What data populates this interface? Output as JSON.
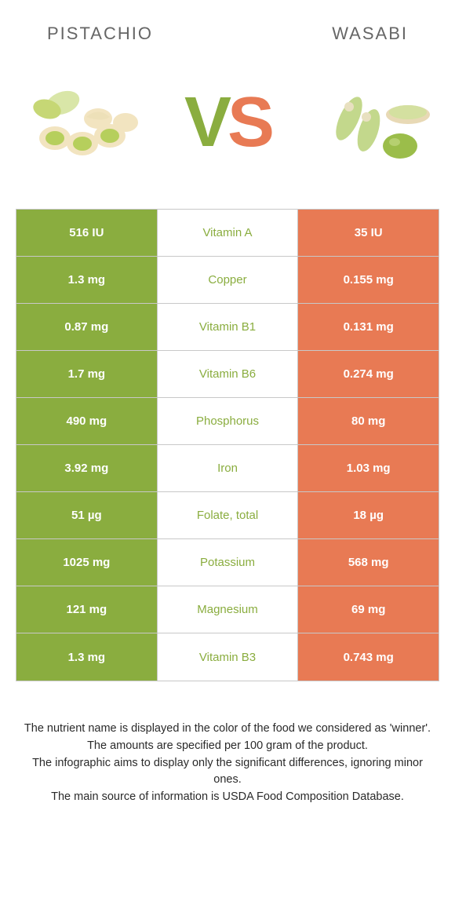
{
  "header": {
    "left": "PISTACHIO",
    "right": "WASABI"
  },
  "vs": {
    "v": "V",
    "s": "S"
  },
  "colors": {
    "left_bg": "#8aad3f",
    "right_bg": "#e87a54",
    "mid_bg": "#ffffff",
    "cell_text": "#ffffff",
    "border": "#c8c8c8",
    "header_text": "#666666"
  },
  "nutrients": [
    {
      "left": "516 IU",
      "name": "Vitamin A",
      "right": "35 IU",
      "winner": "left"
    },
    {
      "left": "1.3 mg",
      "name": "Copper",
      "right": "0.155 mg",
      "winner": "left"
    },
    {
      "left": "0.87 mg",
      "name": "Vitamin B1",
      "right": "0.131 mg",
      "winner": "left"
    },
    {
      "left": "1.7 mg",
      "name": "Vitamin B6",
      "right": "0.274 mg",
      "winner": "left"
    },
    {
      "left": "490 mg",
      "name": "Phosphorus",
      "right": "80 mg",
      "winner": "left"
    },
    {
      "left": "3.92 mg",
      "name": "Iron",
      "right": "1.03 mg",
      "winner": "left"
    },
    {
      "left": "51 µg",
      "name": "Folate, total",
      "right": "18 µg",
      "winner": "left"
    },
    {
      "left": "1025 mg",
      "name": "Potassium",
      "right": "568 mg",
      "winner": "left"
    },
    {
      "left": "121 mg",
      "name": "Magnesium",
      "right": "69 mg",
      "winner": "left"
    },
    {
      "left": "1.3 mg",
      "name": "Vitamin B3",
      "right": "0.743 mg",
      "winner": "left"
    }
  ],
  "footer": {
    "line1": "The nutrient name is displayed in the color of the food we considered as 'winner'.",
    "line2": "The amounts are specified per 100 gram of the product.",
    "line3": "The infographic aims to display only the significant differences, ignoring minor ones.",
    "line4": "The main source of information is USDA Food Composition Database."
  }
}
